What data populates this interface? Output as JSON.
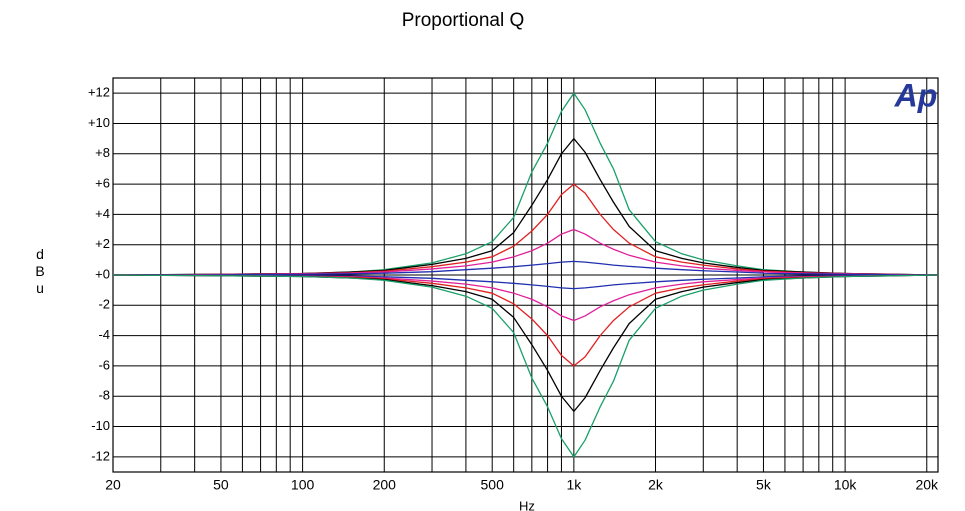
{
  "chart_data": {
    "type": "line",
    "title": "Proportional Q",
    "x_label": "Hz",
    "y_label": "dBu",
    "logo": "Ap",
    "xscale": "log",
    "grid": true,
    "xlim": [
      20,
      22000
    ],
    "ylim": [
      -13,
      13
    ],
    "xticks": [
      20,
      50,
      100,
      200,
      500,
      {
        "value": 1000,
        "label": "1k"
      },
      {
        "value": 2000,
        "label": "2k"
      },
      {
        "value": 5000,
        "label": "5k"
      },
      {
        "value": 10000,
        "label": "10k"
      },
      {
        "value": 20000,
        "label": "20k"
      }
    ],
    "xminorticks": [
      30,
      40,
      60,
      70,
      80,
      90,
      300,
      400,
      600,
      700,
      800,
      900,
      3000,
      4000,
      6000,
      7000,
      8000,
      9000
    ],
    "yticks": [
      {
        "value": 12,
        "label": "+12"
      },
      {
        "value": 10,
        "label": "+10"
      },
      {
        "value": 8,
        "label": "+8"
      },
      {
        "value": 6,
        "label": "+6"
      },
      {
        "value": 4,
        "label": "+4"
      },
      {
        "value": 2,
        "label": "+2"
      },
      {
        "value": 0,
        "label": "+0"
      },
      -2,
      -4,
      -6,
      -8,
      -10,
      -12
    ],
    "x": [
      20,
      50,
      100,
      150,
      200,
      300,
      400,
      500,
      600,
      700,
      800,
      900,
      1000,
      1100,
      1250,
      1400,
      1600,
      2000,
      2500,
      3000,
      4000,
      5000,
      7000,
      10000,
      15000,
      22000
    ],
    "series": [
      {
        "color": "#1aa06a",
        "values": [
          0,
          0.05,
          0.1,
          0.2,
          0.35,
          0.8,
          1.4,
          2.2,
          3.8,
          6.8,
          8.7,
          10.8,
          12,
          10.9,
          8.7,
          7.0,
          4.3,
          2.2,
          1.4,
          1.0,
          0.6,
          0.35,
          0.2,
          0.1,
          0.05,
          0
        ]
      },
      {
        "color": "#000000",
        "values": [
          0,
          0.05,
          0.1,
          0.2,
          0.3,
          0.7,
          1.1,
          1.6,
          2.8,
          4.6,
          6.3,
          8.0,
          9,
          8.1,
          6.3,
          4.8,
          3.2,
          1.6,
          1.1,
          0.8,
          0.5,
          0.3,
          0.2,
          0.1,
          0.05,
          0
        ]
      },
      {
        "color": "#e02020",
        "values": [
          0,
          0.04,
          0.1,
          0.15,
          0.25,
          0.55,
          0.85,
          1.2,
          1.9,
          2.9,
          4.0,
          5.3,
          6,
          5.4,
          4.0,
          3.0,
          2.1,
          1.2,
          0.85,
          0.65,
          0.4,
          0.25,
          0.15,
          0.1,
          0.04,
          0
        ]
      },
      {
        "color": "#e0209a",
        "values": [
          0,
          0.03,
          0.08,
          0.12,
          0.2,
          0.4,
          0.6,
          0.85,
          1.2,
          1.6,
          2.1,
          2.7,
          3,
          2.7,
          2.1,
          1.7,
          1.3,
          0.85,
          0.6,
          0.45,
          0.3,
          0.2,
          0.12,
          0.08,
          0.03,
          0
        ]
      },
      {
        "color": "#2030b0",
        "values": [
          0,
          0.02,
          0.05,
          0.08,
          0.12,
          0.22,
          0.35,
          0.45,
          0.55,
          0.65,
          0.75,
          0.85,
          0.9,
          0.85,
          0.75,
          0.65,
          0.57,
          0.45,
          0.35,
          0.28,
          0.2,
          0.12,
          0.08,
          0.05,
          0.02,
          0
        ]
      },
      {
        "color": "#2030b0",
        "values": [
          0,
          -0.02,
          -0.05,
          -0.08,
          -0.12,
          -0.22,
          -0.35,
          -0.45,
          -0.55,
          -0.65,
          -0.75,
          -0.85,
          -0.9,
          -0.85,
          -0.75,
          -0.65,
          -0.57,
          -0.45,
          -0.35,
          -0.28,
          -0.2,
          -0.12,
          -0.08,
          -0.05,
          -0.02,
          0
        ]
      },
      {
        "color": "#e0209a",
        "values": [
          0,
          -0.03,
          -0.08,
          -0.12,
          -0.2,
          -0.4,
          -0.6,
          -0.85,
          -1.2,
          -1.6,
          -2.1,
          -2.7,
          -3,
          -2.7,
          -2.1,
          -1.7,
          -1.3,
          -0.85,
          -0.6,
          -0.45,
          -0.3,
          -0.2,
          -0.12,
          -0.08,
          -0.03,
          0
        ]
      },
      {
        "color": "#e02020",
        "values": [
          0,
          -0.04,
          -0.1,
          -0.15,
          -0.25,
          -0.55,
          -0.85,
          -1.2,
          -1.9,
          -2.9,
          -4.0,
          -5.3,
          -6,
          -5.4,
          -4.0,
          -3.0,
          -2.1,
          -1.2,
          -0.85,
          -0.65,
          -0.4,
          -0.25,
          -0.15,
          -0.1,
          -0.04,
          0
        ]
      },
      {
        "color": "#000000",
        "values": [
          0,
          -0.05,
          -0.1,
          -0.2,
          -0.3,
          -0.7,
          -1.1,
          -1.6,
          -2.8,
          -4.6,
          -6.3,
          -8.0,
          -9,
          -8.1,
          -6.3,
          -4.8,
          -3.2,
          -1.6,
          -1.1,
          -0.8,
          -0.5,
          -0.3,
          -0.2,
          -0.1,
          -0.05,
          0
        ]
      },
      {
        "color": "#1aa06a",
        "values": [
          0,
          -0.05,
          -0.1,
          -0.2,
          -0.35,
          -0.8,
          -1.4,
          -2.2,
          -3.8,
          -6.8,
          -8.7,
          -10.8,
          -12,
          -10.9,
          -8.7,
          -7.0,
          -4.3,
          -2.2,
          -1.4,
          -1.0,
          -0.6,
          -0.35,
          -0.2,
          -0.1,
          -0.05,
          0
        ]
      }
    ]
  }
}
